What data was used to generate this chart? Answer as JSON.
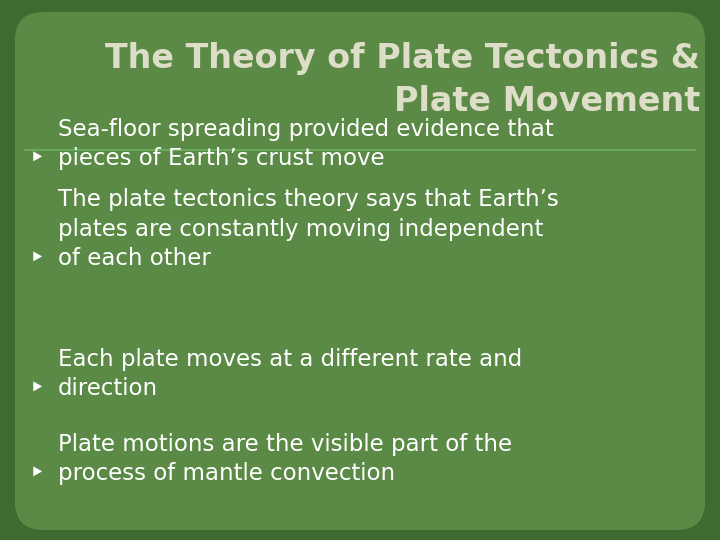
{
  "title_line1": "The Theory of Plate Tectonics &",
  "title_line2": "Plate Movement",
  "bullet_points": [
    "Sea-floor spreading provided evidence that\npieces of Earth’s crust move",
    "The plate tectonics theory says that Earth’s\nplates are constantly moving independent\nof each other",
    "Each plate moves at a different rate and\ndirection",
    "Plate motions are the visible part of the\nprocess of mantle convection"
  ],
  "bg_color": "#5a8a45",
  "bg_outer_color": "#3d6b30",
  "title_color": "#ddddc8",
  "bullet_color": "#ffffff",
  "separator_color": "#6aaa5a",
  "title_fontsize": 24,
  "bullet_fontsize": 16.5,
  "figsize": [
    7.2,
    5.4
  ],
  "dpi": 100
}
